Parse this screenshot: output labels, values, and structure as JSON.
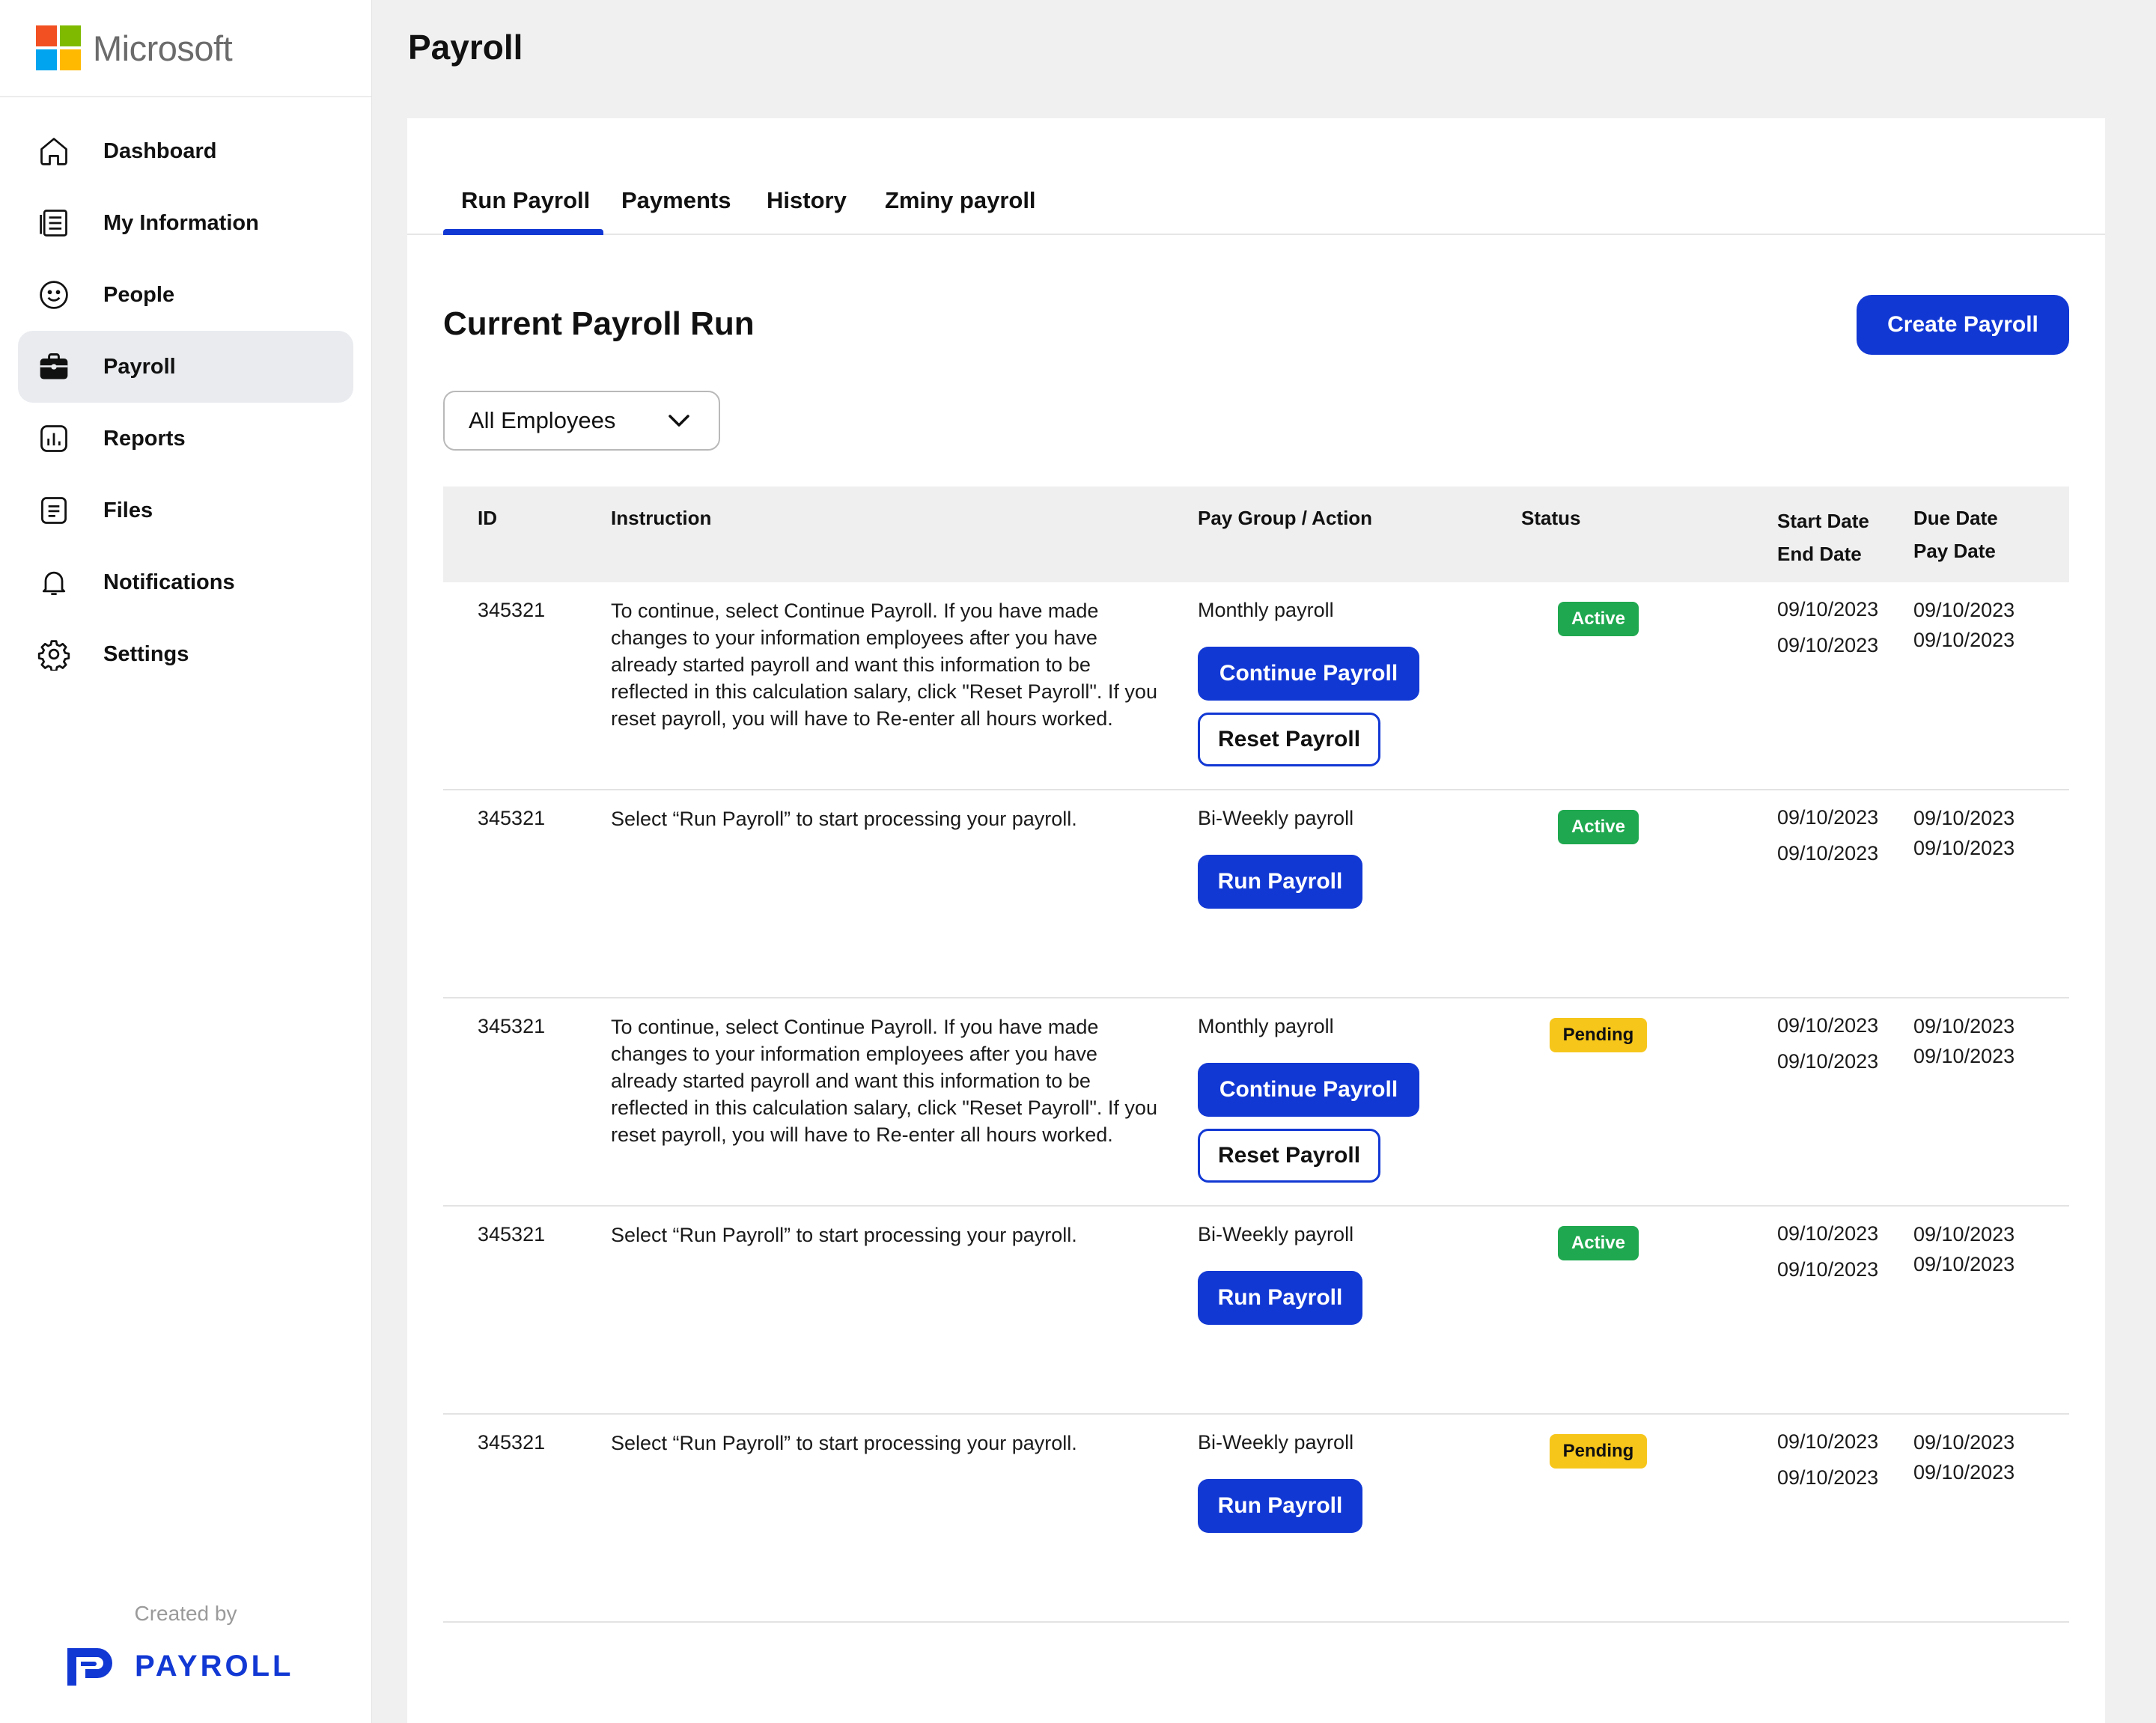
{
  "brand": {
    "name": "Microsoft",
    "logo_colors": [
      "#f25022",
      "#7fba00",
      "#00a4ef",
      "#ffb900"
    ]
  },
  "sidebar": {
    "items": [
      {
        "label": "Dashboard",
        "icon": "home-icon"
      },
      {
        "label": "My Information",
        "icon": "document-list-icon"
      },
      {
        "label": "People",
        "icon": "smiley-icon"
      },
      {
        "label": "Payroll",
        "icon": "briefcase-icon",
        "active": true
      },
      {
        "label": "Reports",
        "icon": "bar-chart-icon"
      },
      {
        "label": "Files",
        "icon": "file-text-icon"
      },
      {
        "label": "Notifications",
        "icon": "bell-icon"
      },
      {
        "label": "Settings",
        "icon": "gear-icon"
      }
    ],
    "footer": {
      "created_by": "Created by",
      "logo_text": "PAYROLL"
    }
  },
  "page": {
    "title": "Payroll"
  },
  "tabs": [
    {
      "label": "Run Payroll",
      "active": true
    },
    {
      "label": "Payments"
    },
    {
      "label": "History"
    },
    {
      "label": "Zminy payroll"
    }
  ],
  "section": {
    "title": "Current Payroll Run",
    "create_button": "Create  Payroll",
    "filter_value": "All Employees"
  },
  "table": {
    "headers": {
      "id": "ID",
      "instruction": "Instruction",
      "pay_group": "Pay Group / Action",
      "status": "Status",
      "start_date": "Start Date",
      "end_date": "End Date",
      "due_date": "Due Date",
      "pay_date": "Pay Date"
    },
    "rows": [
      {
        "id": "345321",
        "instruction": "To continue, select Continue Payroll. If you have made changes to your information employees after you have already started payroll and want this information to be reflected in this calculation salary, click \"Reset Payroll\". If you reset payroll, you will have to Re-enter all hours worked.",
        "pay_group": "Monthly payroll",
        "primary_action": "Continue Payroll",
        "secondary_action": "Reset Payroll",
        "status": "Active",
        "start_date": "09/10/2023",
        "end_date": "09/10/2023",
        "due_date": "09/10/2023",
        "pay_date": "09/10/2023"
      },
      {
        "id": "345321",
        "instruction": "Select “Run Payroll” to start processing your payroll.",
        "pay_group": "Bi-Weekly payroll",
        "primary_action": "Run Payroll",
        "status": "Active",
        "start_date": "09/10/2023",
        "end_date": "09/10/2023",
        "due_date": "09/10/2023",
        "pay_date": "09/10/2023"
      },
      {
        "id": "345321",
        "instruction": "To continue, select Continue Payroll. If you have made changes to your information employees after you have already started payroll and want this information to be reflected in this calculation salary, click \"Reset Payroll\". If you reset payroll, you will have to Re-enter all hours worked.",
        "pay_group": "Monthly payroll",
        "primary_action": "Continue Payroll",
        "secondary_action": "Reset Payroll",
        "status": "Pending",
        "start_date": "09/10/2023",
        "end_date": "09/10/2023",
        "due_date": "09/10/2023",
        "pay_date": "09/10/2023"
      },
      {
        "id": "345321",
        "instruction": "Select “Run Payroll” to start processing your payroll.",
        "pay_group": "Bi-Weekly payroll",
        "primary_action": "Run Payroll",
        "status": "Active",
        "start_date": "09/10/2023",
        "end_date": "09/10/2023",
        "due_date": "09/10/2023",
        "pay_date": "09/10/2023"
      },
      {
        "id": "345321",
        "instruction": "Select “Run Payroll” to start processing your payroll.",
        "pay_group": "Bi-Weekly payroll",
        "primary_action": "Run Payroll",
        "status": "Pending",
        "start_date": "09/10/2023",
        "end_date": "09/10/2023",
        "due_date": "09/10/2023",
        "pay_date": "09/10/2023"
      }
    ]
  },
  "colors": {
    "accent": "#1238d4",
    "active_badge": "#1fa84f",
    "pending_badge": "#f6c61b"
  }
}
